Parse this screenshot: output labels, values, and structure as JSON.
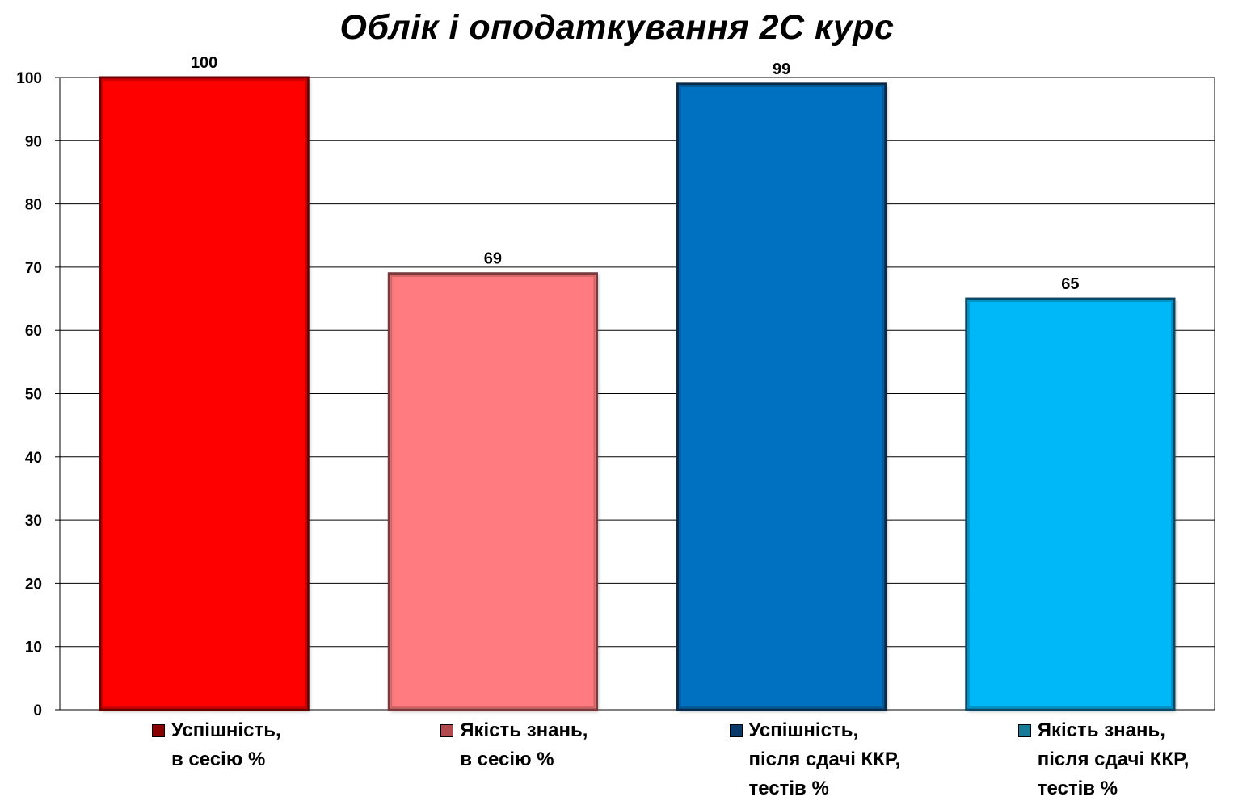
{
  "chart_data": {
    "type": "bar",
    "title": "Облік і оподаткування 2С курс",
    "xlabel": "",
    "ylabel": "",
    "ylim": [
      0,
      100
    ],
    "yticks": [
      0,
      10,
      20,
      30,
      40,
      50,
      60,
      70,
      80,
      90,
      100
    ],
    "grid": true,
    "legend_position": "bottom",
    "series": [
      {
        "name": "Успішність,\nв сесію %",
        "value": 100,
        "color": "#ff0000",
        "border": "#6b0000",
        "swatch": "#8b0000"
      },
      {
        "name": "Якість знань,\nв сесію %",
        "value": 69,
        "color": "#ff7b7f",
        "border": "#7a3a3c",
        "swatch": "#b04a4e"
      },
      {
        "name": "Успішність,\nпісля сдачі ККР,\nтестів %",
        "value": 99,
        "color": "#0070c0",
        "border": "#0a2a4a",
        "swatch": "#0a3a6a"
      },
      {
        "name": "Якість знань,\nпісля сдачі ККР,\nтестів %",
        "value": 65,
        "color": "#00b8f8",
        "border": "#0a4a66",
        "swatch": "#1a7a9a"
      }
    ]
  }
}
